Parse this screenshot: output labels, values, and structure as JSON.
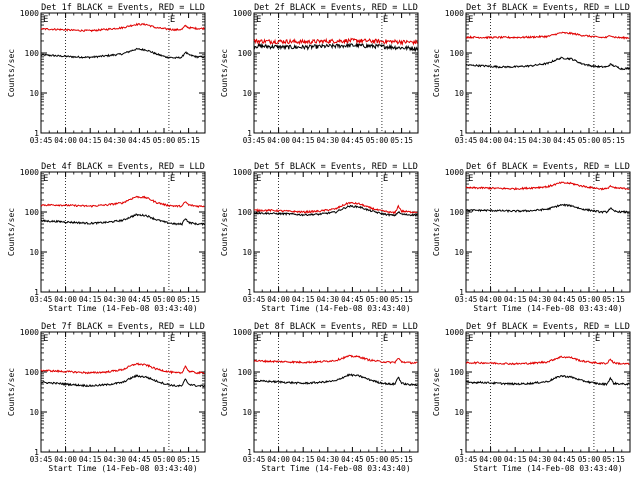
{
  "chart_data": {
    "type": "line",
    "layout": "3x3 grid of small multiples",
    "xlabel": "Start Time (14-Feb-08 03:43:40)",
    "ylabel": "Counts/sec",
    "yscale": "log",
    "ylim": [
      1,
      1000
    ],
    "y_ticks": [
      {
        "value": 1,
        "label": "1"
      },
      {
        "value": 10,
        "label": "10"
      },
      {
        "value": 100,
        "label": "100"
      },
      {
        "value": 1000,
        "label": "1000"
      }
    ],
    "x_range_minutes": [
      0,
      100
    ],
    "x_ticks": [
      {
        "minute": 0,
        "label": "03:45"
      },
      {
        "minute": 15,
        "label": "04:00"
      },
      {
        "minute": 30,
        "label": "04:15"
      },
      {
        "minute": 45,
        "label": "04:30"
      },
      {
        "minute": 60,
        "label": "04:45"
      },
      {
        "minute": 75,
        "label": "05:00"
      },
      {
        "minute": 90,
        "label": "05:15"
      }
    ],
    "vertical_markers": [
      {
        "minute": 15,
        "label": ""
      },
      {
        "minute": 78,
        "label": "E"
      }
    ],
    "corner_marker": "E",
    "legend": {
      "black": "Events",
      "red": "LLD"
    },
    "colors": {
      "events": "#000000",
      "lld": "#e00000"
    },
    "panels": [
      {
        "title": "Det 1f BLACK = Events, RED = LLD",
        "series": [
          {
            "name": "Events",
            "color": "black",
            "x": [
              0,
              10,
              20,
              30,
              40,
              50,
              58,
              64,
              70,
              76,
              82,
              86,
              88,
              90,
              95,
              100
            ],
            "y": [
              90,
              85,
              80,
              78,
              85,
              95,
              125,
              120,
              95,
              80,
              75,
              78,
              105,
              90,
              80,
              80
            ]
          },
          {
            "name": "LLD",
            "color": "red",
            "x": [
              0,
              10,
              20,
              30,
              40,
              50,
              58,
              64,
              70,
              76,
              82,
              86,
              88,
              90,
              95,
              100
            ],
            "y": [
              400,
              390,
              370,
              360,
              390,
              430,
              520,
              520,
              430,
              400,
              380,
              390,
              480,
              430,
              410,
              410
            ]
          }
        ],
        "show_xlabel": false
      },
      {
        "title": "Det 2f BLACK = Events, RED = LLD",
        "series": [
          {
            "name": "Events",
            "color": "black",
            "x": [
              0,
              10,
              20,
              30,
              40,
              50,
              60,
              70,
              80,
              90,
              100
            ],
            "y": [
              150,
              145,
              140,
              140,
              145,
              150,
              155,
              150,
              145,
              135,
              130
            ]
          },
          {
            "name": "LLD",
            "color": "red",
            "x": [
              0,
              10,
              20,
              30,
              40,
              50,
              60,
              70,
              80,
              90,
              100
            ],
            "y": [
              200,
              195,
              195,
              190,
              195,
              200,
              205,
              200,
              195,
              190,
              185
            ]
          }
        ],
        "show_xlabel": false
      },
      {
        "title": "Det 3f BLACK = Events, RED = LLD",
        "series": [
          {
            "name": "Events",
            "color": "black",
            "x": [
              0,
              10,
              20,
              30,
              40,
              50,
              58,
              64,
              70,
              76,
              82,
              86,
              88,
              90,
              95,
              100
            ],
            "y": [
              50,
              48,
              45,
              45,
              48,
              55,
              75,
              72,
              55,
              48,
              45,
              45,
              52,
              48,
              40,
              42
            ]
          },
          {
            "name": "LLD",
            "color": "red",
            "x": [
              0,
              10,
              20,
              30,
              40,
              50,
              58,
              64,
              70,
              76,
              82,
              86,
              88,
              90,
              95,
              100
            ],
            "y": [
              250,
              245,
              245,
              245,
              250,
              260,
              320,
              310,
              280,
              260,
              245,
              245,
              280,
              250,
              240,
              240
            ]
          }
        ],
        "show_xlabel": false
      },
      {
        "title": "Det 4f BLACK = Events, RED = LLD",
        "series": [
          {
            "name": "Events",
            "color": "black",
            "x": [
              0,
              10,
              20,
              30,
              40,
              50,
              58,
              64,
              70,
              76,
              82,
              86,
              88,
              90,
              95,
              100
            ],
            "y": [
              60,
              58,
              55,
              52,
              55,
              62,
              85,
              82,
              65,
              55,
              50,
              50,
              70,
              55,
              50,
              50
            ]
          },
          {
            "name": "LLD",
            "color": "red",
            "x": [
              0,
              10,
              20,
              30,
              40,
              50,
              58,
              64,
              70,
              76,
              82,
              86,
              88,
              90,
              95,
              100
            ],
            "y": [
              150,
              150,
              145,
              140,
              150,
              170,
              240,
              230,
              175,
              150,
              140,
              140,
              180,
              150,
              140,
              140
            ]
          }
        ],
        "show_xlabel": true
      },
      {
        "title": "Det 5f BLACK = Events, RED = LLD",
        "series": [
          {
            "name": "Events",
            "color": "black",
            "x": [
              0,
              10,
              20,
              30,
              40,
              50,
              58,
              64,
              70,
              76,
              82,
              86,
              88,
              90,
              95,
              100
            ],
            "y": [
              95,
              92,
              90,
              85,
              88,
              100,
              140,
              135,
              110,
              95,
              85,
              82,
              100,
              88,
              85,
              85
            ]
          },
          {
            "name": "LLD",
            "color": "red",
            "x": [
              0,
              10,
              20,
              30,
              40,
              50,
              58,
              64,
              70,
              76,
              82,
              86,
              88,
              90,
              95,
              100
            ],
            "y": [
              110,
              110,
              105,
              100,
              105,
              120,
              170,
              160,
              130,
              110,
              100,
              95,
              140,
              105,
              100,
              100
            ]
          }
        ],
        "show_xlabel": true
      },
      {
        "title": "Det 6f BLACK = Events, RED = LLD",
        "series": [
          {
            "name": "Events",
            "color": "black",
            "x": [
              0,
              10,
              20,
              30,
              40,
              50,
              58,
              64,
              70,
              76,
              82,
              86,
              88,
              90,
              95,
              100
            ],
            "y": [
              110,
              110,
              108,
              105,
              108,
              118,
              150,
              145,
              120,
              110,
              100,
              100,
              125,
              105,
              100,
              100
            ]
          },
          {
            "name": "LLD",
            "color": "red",
            "x": [
              0,
              10,
              20,
              30,
              40,
              50,
              58,
              64,
              70,
              76,
              82,
              86,
              88,
              90,
              95,
              100
            ],
            "y": [
              400,
              400,
              390,
              380,
              400,
              430,
              540,
              520,
              450,
              410,
              380,
              380,
              450,
              400,
              390,
              380
            ]
          }
        ],
        "show_xlabel": true
      },
      {
        "title": "Det 7f BLACK = Events, RED = LLD",
        "series": [
          {
            "name": "Events",
            "color": "black",
            "x": [
              0,
              10,
              20,
              30,
              40,
              50,
              58,
              64,
              70,
              76,
              82,
              86,
              88,
              90,
              95,
              100
            ],
            "y": [
              55,
              52,
              48,
              45,
              48,
              55,
              80,
              75,
              60,
              50,
              45,
              45,
              65,
              50,
              45,
              45
            ]
          },
          {
            "name": "LLD",
            "color": "red",
            "x": [
              0,
              10,
              20,
              30,
              40,
              50,
              58,
              64,
              70,
              76,
              82,
              86,
              88,
              90,
              95,
              100
            ],
            "y": [
              110,
              105,
              100,
              95,
              100,
              115,
              160,
              150,
              120,
              105,
              95,
              95,
              140,
              105,
              95,
              95
            ]
          }
        ],
        "show_xlabel": true
      },
      {
        "title": "Det 8f BLACK = Events, RED = LLD",
        "series": [
          {
            "name": "Events",
            "color": "black",
            "x": [
              0,
              10,
              20,
              30,
              40,
              50,
              58,
              64,
              70,
              76,
              82,
              86,
              88,
              90,
              95,
              100
            ],
            "y": [
              60,
              58,
              55,
              52,
              55,
              60,
              85,
              80,
              65,
              55,
              50,
              50,
              75,
              52,
              48,
              48
            ]
          },
          {
            "name": "LLD",
            "color": "red",
            "x": [
              0,
              10,
              20,
              30,
              40,
              50,
              58,
              64,
              70,
              76,
              82,
              86,
              88,
              90,
              95,
              100
            ],
            "y": [
              190,
              185,
              180,
              175,
              180,
              195,
              250,
              240,
              200,
              185,
              175,
              175,
              220,
              180,
              170,
              170
            ]
          }
        ],
        "show_xlabel": true
      },
      {
        "title": "Det 9f BLACK = Events, RED = LLD",
        "series": [
          {
            "name": "Events",
            "color": "black",
            "x": [
              0,
              10,
              20,
              30,
              40,
              50,
              58,
              64,
              70,
              76,
              82,
              86,
              88,
              90,
              95,
              100
            ],
            "y": [
              55,
              55,
              52,
              50,
              52,
              58,
              80,
              75,
              62,
              55,
              50,
              50,
              70,
              52,
              50,
              50
            ]
          },
          {
            "name": "LLD",
            "color": "red",
            "x": [
              0,
              10,
              20,
              30,
              40,
              50,
              58,
              64,
              70,
              76,
              82,
              86,
              88,
              90,
              95,
              100
            ],
            "y": [
              170,
              170,
              165,
              160,
              165,
              180,
              240,
              230,
              190,
              175,
              165,
              165,
              210,
              170,
              160,
              160
            ]
          }
        ],
        "show_xlabel": true
      }
    ]
  }
}
